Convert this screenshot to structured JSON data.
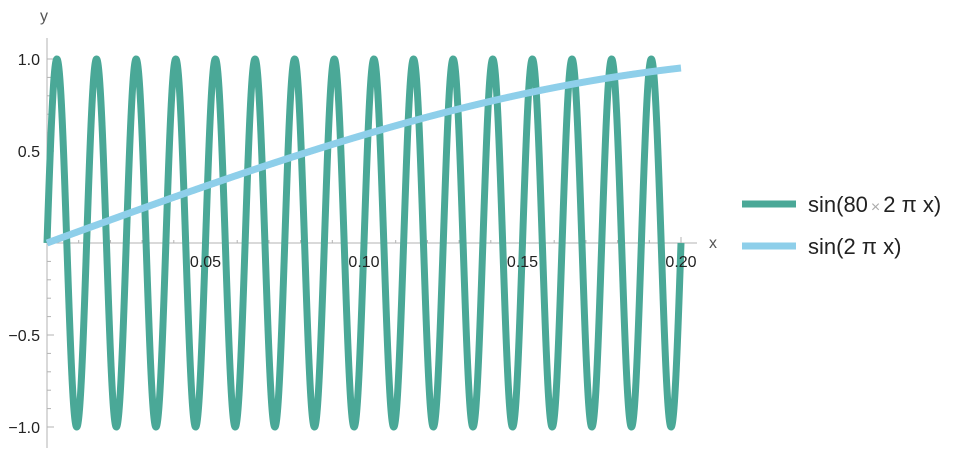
{
  "chart_data": {
    "type": "line",
    "xlabel": "x",
    "ylabel": "y",
    "xlim": [
      0,
      0.2
    ],
    "ylim": [
      -1.0,
      1.0
    ],
    "x_ticks": [
      {
        "value": 0.05,
        "label": "0.05"
      },
      {
        "value": 0.1,
        "label": "0.10"
      },
      {
        "value": 0.15,
        "label": "0.15"
      },
      {
        "value": 0.2,
        "label": "0.20"
      }
    ],
    "y_ticks": [
      {
        "value": 1.0,
        "label": "1.0"
      },
      {
        "value": 0.5,
        "label": "0.5"
      },
      {
        "value": -0.5,
        "label": "−0.5"
      },
      {
        "value": -1.0,
        "label": "−1.0"
      }
    ],
    "x_minor_ticks": [
      0.01,
      0.02,
      0.03,
      0.04,
      0.06,
      0.07,
      0.08,
      0.09,
      0.11,
      0.12,
      0.13,
      0.14,
      0.16,
      0.17,
      0.18,
      0.19
    ],
    "y_minor_ticks": [
      0.9,
      0.8,
      0.7,
      0.6,
      0.4,
      0.3,
      0.2,
      0.1,
      -0.1,
      -0.2,
      -0.3,
      -0.4,
      -0.6,
      -0.7,
      -0.8,
      -0.9
    ],
    "grid": false,
    "legend_placement": "right",
    "series": [
      {
        "formula": "sin(80*2*pi*x)",
        "legend": {
          "pre": "sin(80",
          "times": "×",
          "post": "2 π x)"
        },
        "color": "#4aa897",
        "frequency_cycles_per_unit": 80,
        "x_range": [
          0,
          0.2
        ]
      },
      {
        "formula": "sin(2*pi*x)",
        "legend": {
          "pre": "sin(2 π x)",
          "times": "",
          "post": ""
        },
        "color": "#8ecfea",
        "frequency_cycles_per_unit": 1,
        "x_range": [
          0,
          0.2
        ]
      }
    ]
  }
}
